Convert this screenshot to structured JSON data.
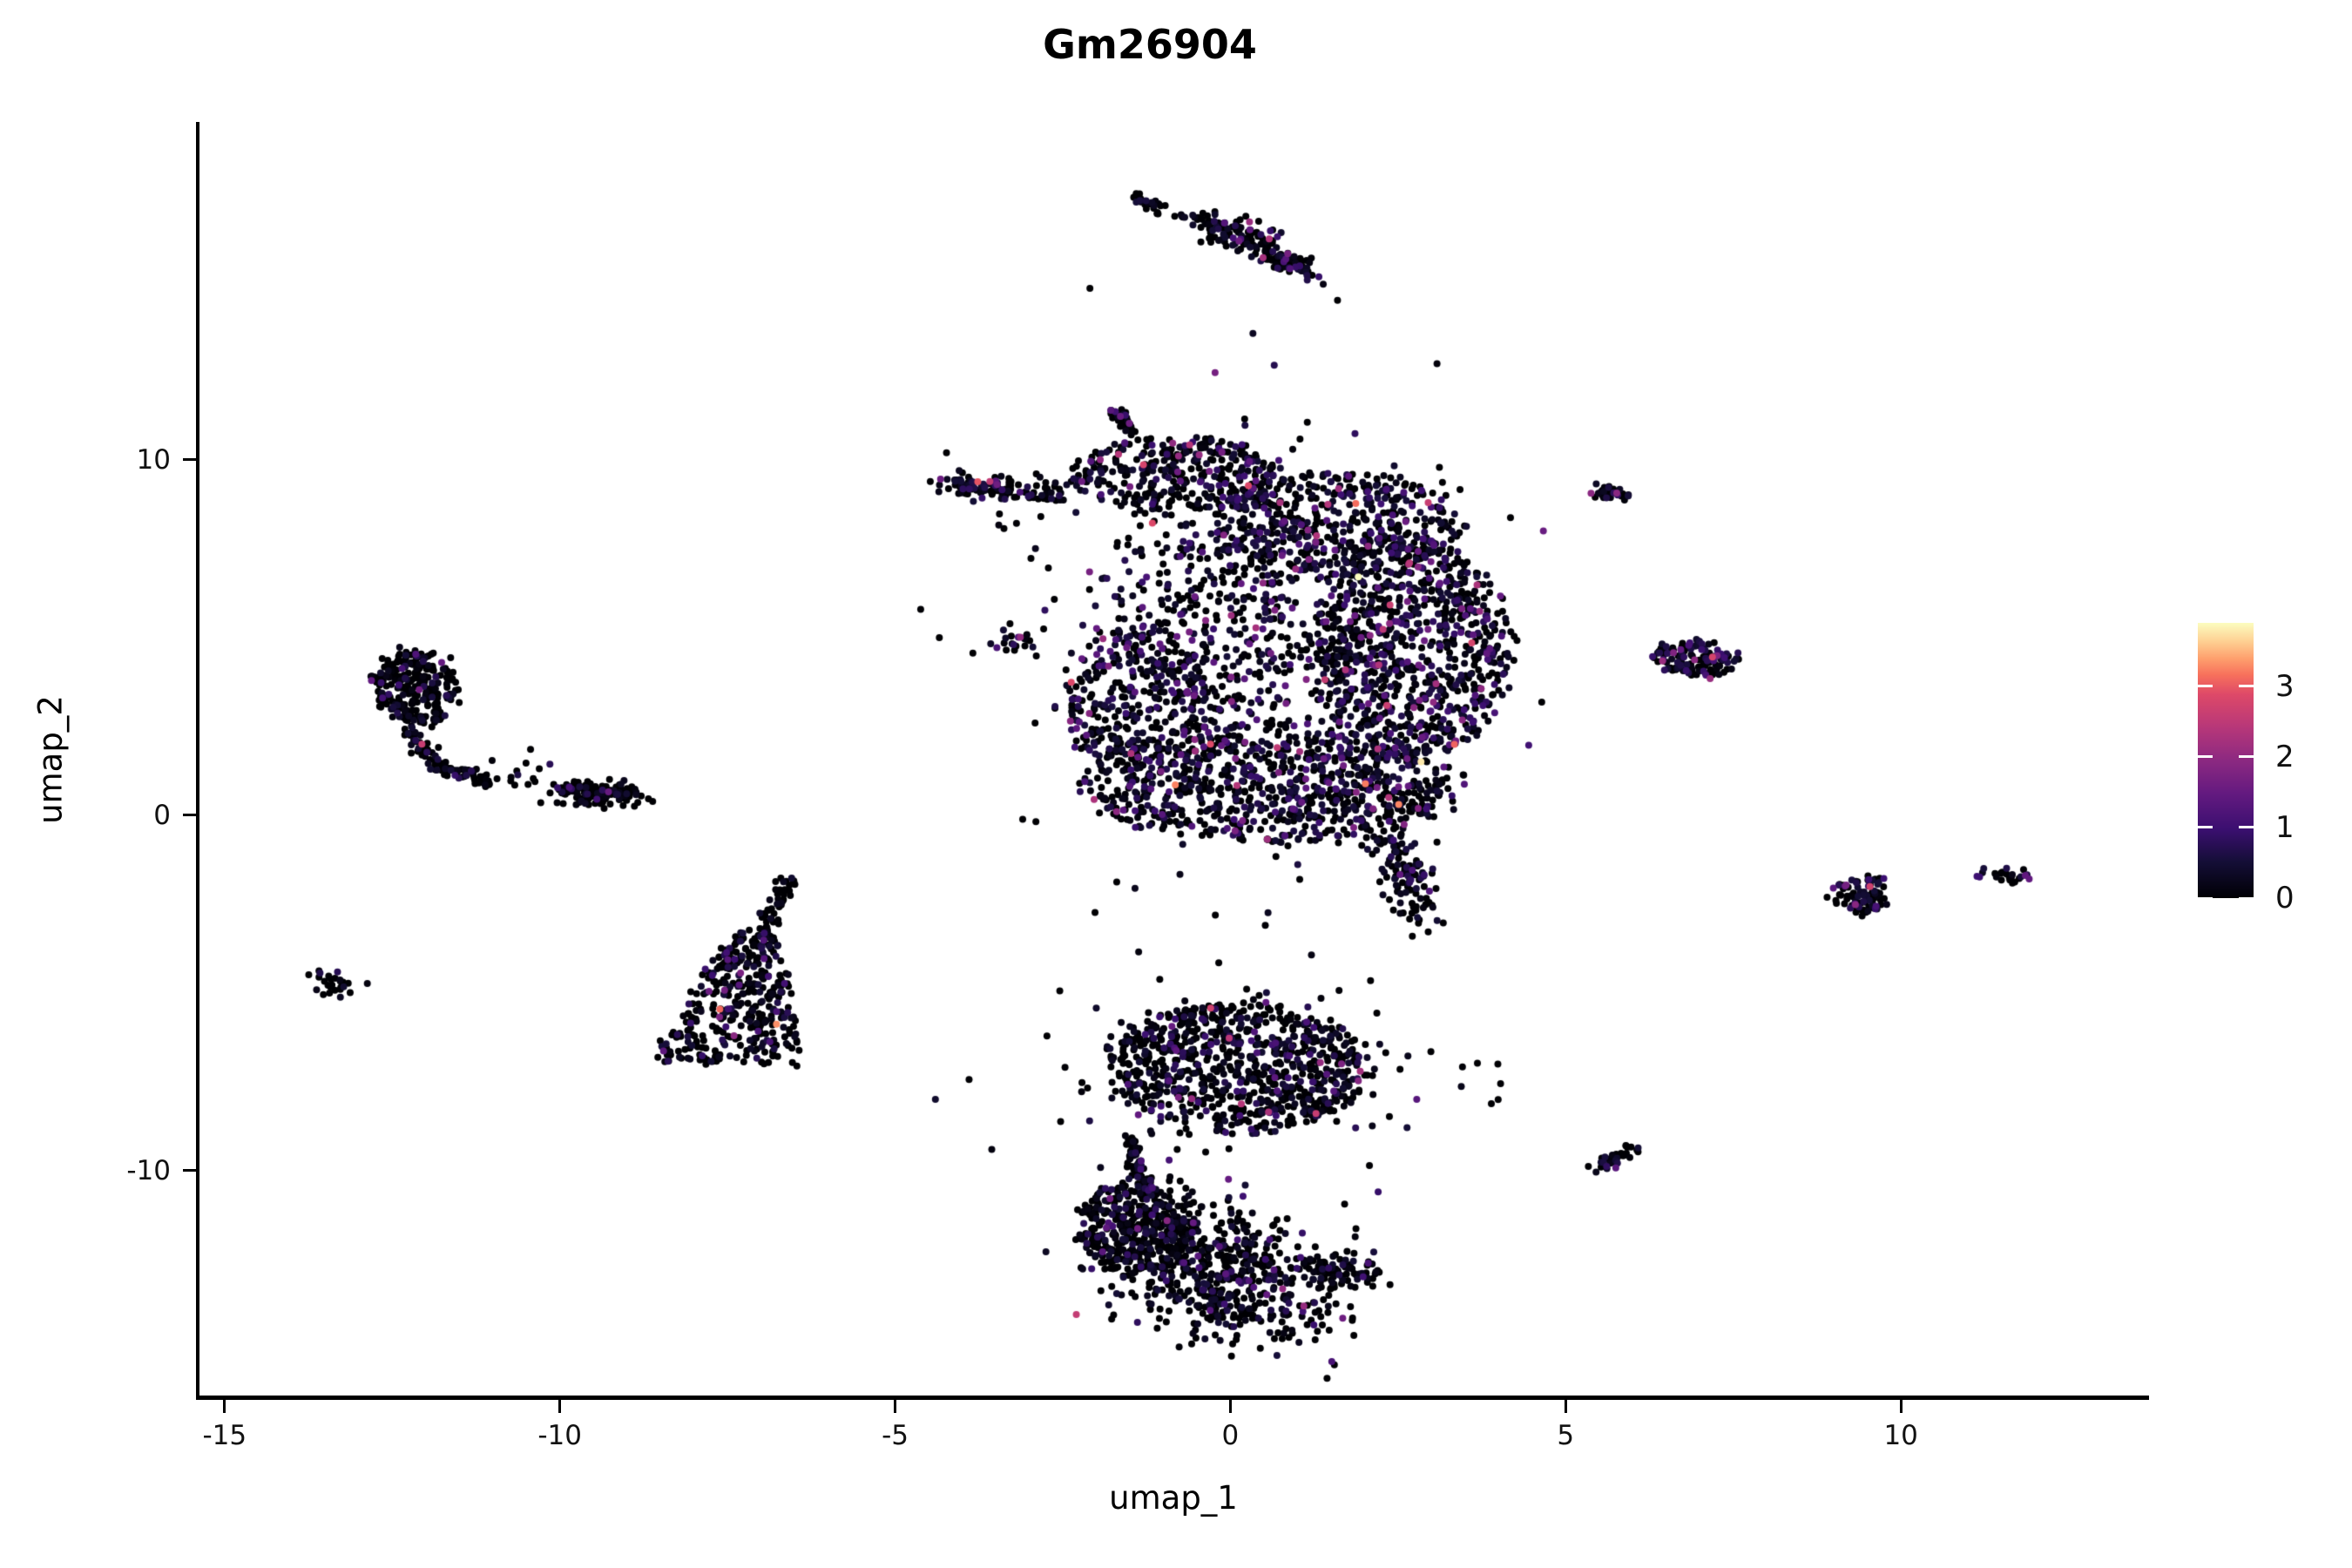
{
  "title": "Gm26904",
  "axes": {
    "x": {
      "label": "umap_1",
      "ticks": [
        -15,
        -10,
        -5,
        0,
        5,
        10
      ]
    },
    "y": {
      "label": "umap_2",
      "ticks": [
        -10,
        0,
        10
      ]
    }
  },
  "legend": {
    "ticks": [
      0,
      1,
      2,
      3
    ],
    "max_value": 3.9,
    "colormap_name": "magma",
    "tick_color": "#ffffff"
  },
  "chart_data": {
    "type": "scatter",
    "title": "Gm26904",
    "xlabel": "umap_1",
    "ylabel": "umap_2",
    "xlim": [
      -15.4,
      13.7
    ],
    "ylim": [
      -16.4,
      19.5
    ],
    "x_tick_values": [
      -15,
      -10,
      -5,
      0,
      5,
      10
    ],
    "y_tick_values": [
      -10,
      0,
      10
    ],
    "grid": false,
    "legend_position": "right",
    "point_radius_px": 4,
    "colorbar": {
      "ticks": [
        0,
        1,
        2,
        3
      ],
      "domain": [
        0,
        3.9
      ],
      "stops": [
        [
          0.0,
          "#000004"
        ],
        [
          0.13,
          "#140e36"
        ],
        [
          0.25,
          "#3b0f70"
        ],
        [
          0.38,
          "#641a80"
        ],
        [
          0.5,
          "#8c2981"
        ],
        [
          0.62,
          "#b73779"
        ],
        [
          0.74,
          "#de4968"
        ],
        [
          0.81,
          "#f7705c"
        ],
        [
          0.87,
          "#fe9f6d"
        ],
        [
          0.93,
          "#fece91"
        ],
        [
          1.0,
          "#fcfdbf"
        ]
      ]
    },
    "rng_seed": 123457,
    "clusters": [
      {
        "name": "top-line",
        "shape": "line",
        "x1": -1.38,
        "y1": 17.35,
        "x2": -1.02,
        "y2": 17.0,
        "wx": 0.04,
        "wy": 0.08,
        "n": 28,
        "p0": 0.5,
        "cs": 0.5
      },
      {
        "name": "top-connector",
        "shape": "line",
        "x1": -0.95,
        "y1": 16.95,
        "x2": -0.4,
        "y2": 16.75,
        "wx": 0.03,
        "wy": 0.06,
        "n": 7,
        "p0": 0.4,
        "cs": 0.6
      },
      {
        "name": "top-blob-a",
        "shape": "line",
        "x1": -0.35,
        "y1": 16.6,
        "x2": 0.6,
        "y2": 16.05,
        "wx": 0.12,
        "wy": 0.22,
        "n": 95,
        "p0": 0.5,
        "cs": 0.5
      },
      {
        "name": "top-blob-b",
        "shape": "line",
        "x1": 0.55,
        "y1": 15.8,
        "x2": 1.2,
        "y2": 15.25,
        "wx": 0.1,
        "wy": 0.18,
        "n": 75,
        "p0": 0.5,
        "cs": 0.5
      },
      {
        "name": "cluster-11",
        "shape": "line",
        "x1": -1.78,
        "y1": 11.5,
        "x2": -1.45,
        "y2": 10.78,
        "wx": 0.05,
        "wy": 0.1,
        "n": 30,
        "p0": 0.5,
        "cs": 0.5
      },
      {
        "name": "row-9",
        "shape": "line",
        "x1": -4.32,
        "y1": 9.35,
        "x2": -2.5,
        "y2": 9.0,
        "wx": 0.1,
        "wy": 0.17,
        "n": 120,
        "p0": 0.45,
        "cs": 0.5
      },
      {
        "name": "row-9-out",
        "shape": "gauss",
        "cx": -3.2,
        "cy": 8.0,
        "sx": 0.3,
        "sy": 0.5,
        "n": 6,
        "p0": 0.45,
        "cs": 0.5
      },
      {
        "name": "blob-mid-left",
        "shape": "gauss",
        "cx": -3.2,
        "cy": 4.95,
        "sx": 0.17,
        "sy": 0.2,
        "n": 22,
        "p0": 0.5,
        "cs": 0.4
      },
      {
        "name": "main-top",
        "shape": "uniform",
        "cx": -0.8,
        "cy": 9.6,
        "rx": 1.6,
        "ry": 1.05,
        "rot": 0,
        "n": 330,
        "p0": 0.42,
        "cs": 0.52
      },
      {
        "name": "main-upper-right",
        "shape": "uniform",
        "cx": 1.6,
        "cy": 8.2,
        "rx": 1.85,
        "ry": 1.45,
        "rot": 0,
        "n": 480,
        "p0": 0.42,
        "cs": 0.52
      },
      {
        "name": "main-right",
        "shape": "uniform",
        "cx": 2.7,
        "cy": 4.6,
        "rx": 1.45,
        "ry": 3.1,
        "rot": 0,
        "n": 800,
        "p0": 0.42,
        "cs": 0.52
      },
      {
        "name": "main-mid",
        "shape": "gauss",
        "cx": 0.1,
        "cy": 5.6,
        "sx": 1.1,
        "sy": 1.9,
        "n": 420,
        "p0": 0.42,
        "cs": 0.52
      },
      {
        "name": "main-left",
        "shape": "uniform",
        "cx": -1.4,
        "cy": 3.3,
        "rx": 1.15,
        "ry": 2.0,
        "rot": 0,
        "n": 300,
        "p0": 0.42,
        "cs": 0.52
      },
      {
        "name": "main-lower",
        "shape": "uniform",
        "cx": 0.6,
        "cy": 0.9,
        "rx": 2.85,
        "ry": 1.7,
        "rot": 0,
        "n": 850,
        "p0": 0.42,
        "cs": 0.52
      },
      {
        "name": "main-tail",
        "shape": "line",
        "x1": 2.4,
        "y1": -0.6,
        "x2": 2.8,
        "y2": -2.9,
        "wx": 0.18,
        "wy": 0.25,
        "n": 110,
        "p0": 0.42,
        "cs": 0.52
      },
      {
        "name": "main-scatter",
        "shape": "gauss",
        "cx": 0.4,
        "cy": 4.5,
        "sx": 1.9,
        "sy": 3.4,
        "n": 260,
        "p0": 0.5,
        "cs": 0.5
      },
      {
        "name": "hook-blob",
        "shape": "uniform",
        "cx": -12.15,
        "cy": 3.6,
        "rx": 0.62,
        "ry": 1.05,
        "rot": 8,
        "n": 260,
        "p0": 0.62,
        "cs": 0.32
      },
      {
        "name": "hook-tail-a",
        "shape": "line",
        "x1": -12.35,
        "y1": 2.5,
        "x2": -11.85,
        "y2": 1.4,
        "wx": 0.07,
        "wy": 0.12,
        "n": 45,
        "p0": 0.62,
        "cs": 0.32
      },
      {
        "name": "hook-tail-b",
        "shape": "line",
        "x1": -11.85,
        "y1": 1.4,
        "x2": -11.0,
        "y2": 0.9,
        "wx": 0.07,
        "wy": 0.1,
        "n": 45,
        "p0": 0.62,
        "cs": 0.32
      },
      {
        "name": "hook-sparse",
        "shape": "gauss",
        "cx": -11.1,
        "cy": 1.15,
        "sx": 0.25,
        "sy": 0.2,
        "n": 8,
        "p0": 0.6,
        "cs": 0.35
      },
      {
        "name": "bridge-dots",
        "shape": "gauss",
        "cx": -10.45,
        "cy": 1.3,
        "sx": 0.28,
        "sy": 0.35,
        "n": 13,
        "p0": 0.55,
        "cs": 0.45
      },
      {
        "name": "left-elong",
        "shape": "line",
        "x1": -10.0,
        "y1": 0.7,
        "x2": -8.85,
        "y2": 0.55,
        "wx": 0.12,
        "wy": 0.17,
        "n": 150,
        "p0": 0.6,
        "cs": 0.38
      },
      {
        "name": "x-tiny",
        "shape": "gauss",
        "cx": -13.35,
        "cy": -4.75,
        "sx": 0.18,
        "sy": 0.2,
        "n": 26,
        "p0": 0.6,
        "cs": 0.4
      },
      {
        "name": "tri-tail",
        "shape": "line",
        "x1": -6.58,
        "y1": -1.8,
        "x2": -7.08,
        "y2": -3.7,
        "wx": 0.08,
        "wy": 0.15,
        "n": 55,
        "p0": 0.55,
        "cs": 0.42
      },
      {
        "name": "tri-body",
        "shape": "triangle",
        "ax": -7.1,
        "ay": -3.3,
        "bx": -7.55,
        "by": -7.0,
        "tw": 0.35,
        "bw": 1.15,
        "n": 380,
        "p0": 0.55,
        "cs": 0.42
      },
      {
        "name": "bottom-upper",
        "shape": "uniform",
        "cx": 0.1,
        "cy": -7.1,
        "rx": 1.95,
        "ry": 1.8,
        "rot": -8,
        "n": 760,
        "p0": 0.52,
        "cs": 0.42
      },
      {
        "name": "bottom-upper-fringe",
        "shape": "gauss",
        "cx": 0.1,
        "cy": -7.1,
        "sx": 1.5,
        "sy": 1.35,
        "n": 150,
        "p0": 0.52,
        "cs": 0.42
      },
      {
        "name": "bottom-bridge",
        "shape": "line",
        "x1": -1.52,
        "y1": -8.9,
        "x2": -1.3,
        "y2": -10.4,
        "wx": 0.07,
        "wy": 0.12,
        "n": 55,
        "p0": 0.55,
        "cs": 0.38
      },
      {
        "name": "bottom-lower-left",
        "shape": "uniform",
        "cx": -1.45,
        "cy": -11.6,
        "rx": 0.78,
        "ry": 1.35,
        "rot": 0,
        "n": 280,
        "p0": 0.55,
        "cs": 0.38
      },
      {
        "name": "bottom-lower-main",
        "shape": "line",
        "x1": -1.7,
        "y1": -11.6,
        "x2": 1.0,
        "y2": -13.2,
        "wx": 0.45,
        "wy": 0.9,
        "n": 550,
        "p0": 0.55,
        "cs": 0.38
      },
      {
        "name": "bottom-lower-tip",
        "shape": "line",
        "x1": 1.2,
        "y1": -12.7,
        "x2": 2.25,
        "y2": -13.0,
        "wx": 0.1,
        "wy": 0.22,
        "n": 80,
        "p0": 0.55,
        "cs": 0.38
      },
      {
        "name": "bottom-lower-bulge",
        "shape": "gauss",
        "cx": 0.1,
        "cy": -13.9,
        "sx": 0.8,
        "sy": 0.5,
        "n": 120,
        "p0": 0.55,
        "cs": 0.38
      },
      {
        "name": "right-9",
        "shape": "line",
        "x1": 5.42,
        "y1": 9.1,
        "x2": 5.95,
        "y2": 9.0,
        "wx": 0.06,
        "wy": 0.1,
        "n": 35,
        "p0": 0.5,
        "cs": 0.45
      },
      {
        "name": "right-4",
        "shape": "uniform",
        "cx": 6.93,
        "cy": 4.4,
        "rx": 0.64,
        "ry": 0.5,
        "rot": -15,
        "n": 130,
        "p0": 0.32,
        "cs": 0.62
      },
      {
        "name": "right-neg10",
        "shape": "line",
        "x1": 5.45,
        "y1": -9.95,
        "x2": 6.02,
        "y2": -9.35,
        "wx": 0.06,
        "wy": 0.1,
        "n": 40,
        "p0": 0.5,
        "cs": 0.45
      },
      {
        "name": "right-neg2",
        "shape": "uniform",
        "cx": 9.4,
        "cy": -2.25,
        "rx": 0.44,
        "ry": 0.52,
        "rot": 0,
        "n": 90,
        "p0": 0.5,
        "cs": 0.5
      },
      {
        "name": "far-right",
        "shape": "gauss",
        "cx": 11.6,
        "cy": -1.7,
        "sx": 0.22,
        "sy": 0.12,
        "n": 22,
        "p0": 0.5,
        "cs": 0.5
      },
      {
        "name": "far-right-dot",
        "shape": "gauss",
        "cx": 11.15,
        "cy": -1.72,
        "sx": 0.01,
        "sy": 0.01,
        "n": 1,
        "p0": 0.0,
        "cs": 0.8
      }
    ]
  }
}
